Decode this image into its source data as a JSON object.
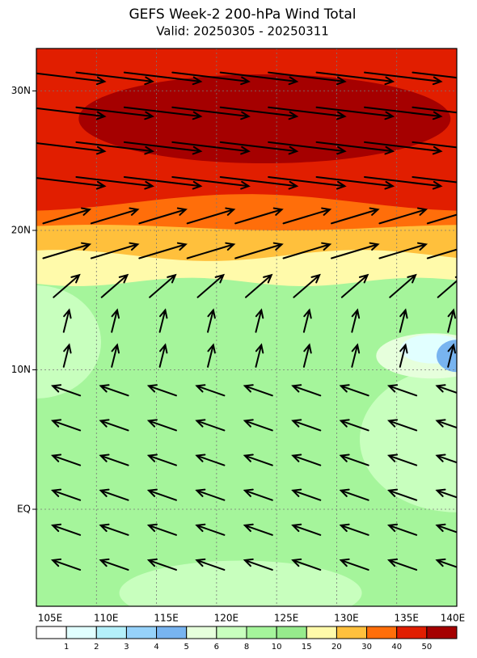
{
  "header": {
    "title": "GEFS Week-2 200-hPa Wind Total",
    "subtitle": "Valid: 20250305 - 20250311"
  },
  "map": {
    "lat_labels": [
      "30N",
      "20N",
      "10N",
      "EQ"
    ],
    "lon_labels": [
      "105E",
      "110E",
      "115E",
      "120E",
      "125E",
      "130E",
      "135E",
      "140E"
    ]
  },
  "colorbar": {
    "labels": [
      "1",
      "2",
      "3",
      "4",
      "5",
      "6",
      "8",
      "10",
      "15",
      "20",
      "30",
      "40",
      "50"
    ],
    "colors": [
      "#ffffff",
      "#e1ffff",
      "#b4f0fa",
      "#96d2fa",
      "#78b4f0",
      "#e6ffdc",
      "#c8ffbe",
      "#a5f59b",
      "#96eb8c",
      "#fffaaa",
      "#ffc03c",
      "#ff6e0a",
      "#e11e00",
      "#a50000"
    ]
  }
}
